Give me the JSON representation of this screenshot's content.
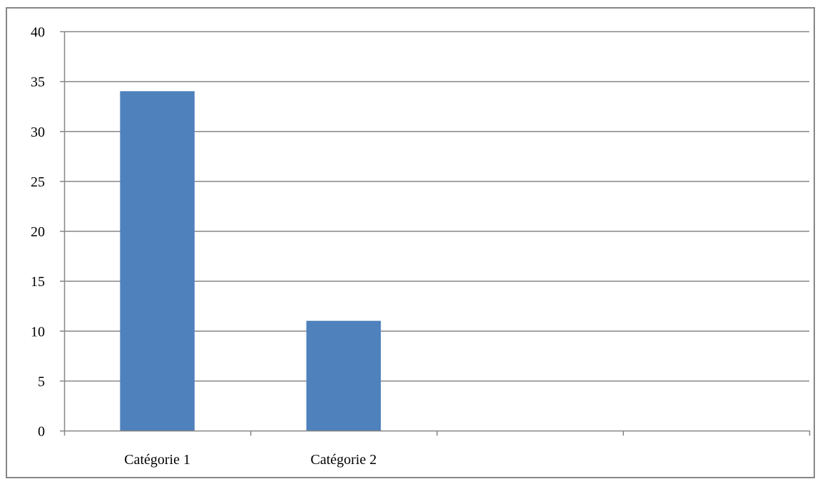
{
  "chart_data": {
    "type": "bar",
    "title": "",
    "xlabel": "",
    "ylabel": "",
    "categories": [
      "Catégorie 1",
      "Catégorie 2",
      "",
      ""
    ],
    "series": [
      {
        "values": [
          34,
          11,
          null,
          null
        ],
        "color": "#4F81BD"
      }
    ],
    "ylim": [
      0,
      40
    ],
    "yticks": [
      0,
      5,
      10,
      15,
      20,
      25,
      30,
      35,
      40
    ],
    "grid": true,
    "legend": "none"
  },
  "colors": {
    "bar": "#4F81BD",
    "grid": "#868686",
    "axis": "#868686",
    "frame": "#868686",
    "text": "#000000"
  }
}
